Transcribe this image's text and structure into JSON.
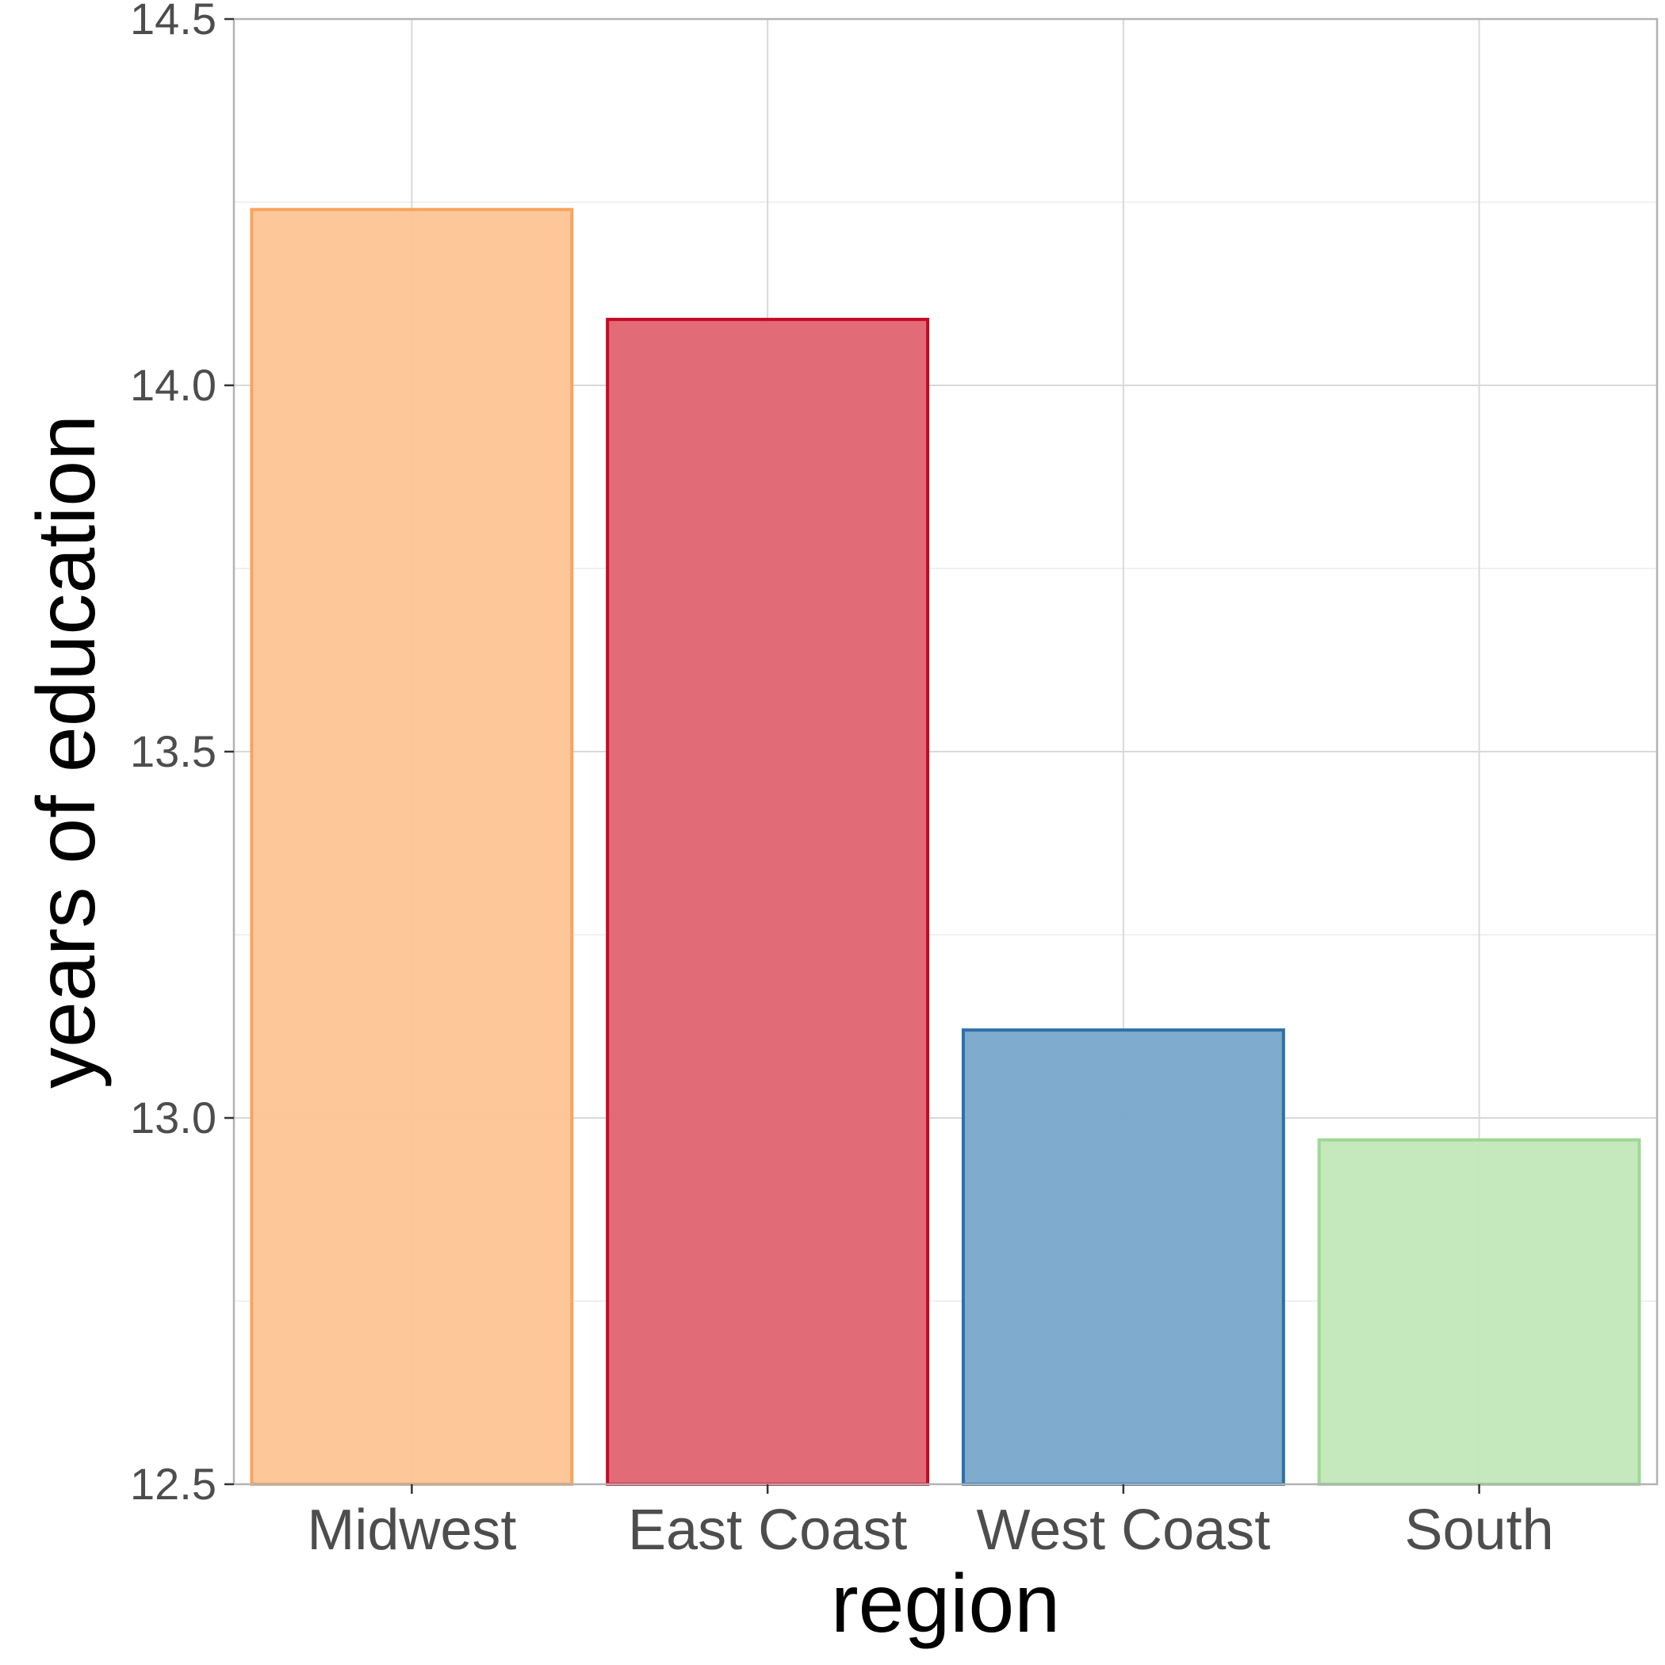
{
  "chart_data": {
    "type": "bar",
    "title": "",
    "xlabel": "region",
    "ylabel": "years of education",
    "categories": [
      "Midwest",
      "East Coast",
      "West Coast",
      "South"
    ],
    "values": [
      14.24,
      14.09,
      13.12,
      12.97
    ],
    "ylim": [
      12.5,
      14.5
    ],
    "yticks": [
      12.5,
      13.0,
      13.5,
      14.0,
      14.5
    ],
    "ytick_labels": [
      "12.5",
      "13.0",
      "13.5",
      "14.0",
      "14.5"
    ],
    "grid": true,
    "legend": "none",
    "fill_colors": [
      "#fdc597",
      "#e06673",
      "#7ba8cc",
      "#c3e7bb"
    ],
    "stroke_colors": [
      "#f8a45d",
      "#c40a26",
      "#2f6fa8",
      "#9ed895"
    ]
  }
}
